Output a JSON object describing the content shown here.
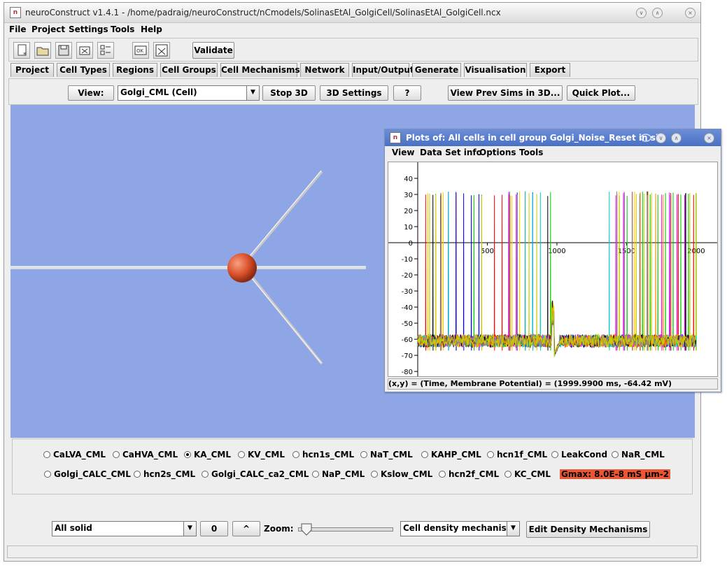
{
  "window": {
    "title": "neuroConstruct v1.4.1 - /home/padraig/neuroConstruct/nCmodels/SolinasEtAl_GolgiCell/SolinasEtAl_GolgiCell.ncx"
  },
  "menu": [
    "File",
    "Project",
    "Settings",
    "Tools",
    "Help"
  ],
  "toolbar": {
    "validate_label": "Validate"
  },
  "tabs": [
    "Project",
    "Cell Types",
    "Regions",
    "Cell Groups",
    "Cell Mechanisms",
    "Network",
    "Input/Output",
    "Generate",
    "Visualisation",
    "Export"
  ],
  "active_tab": "Visualisation",
  "viewbar": {
    "view_label": "View:",
    "view_value": "Golgi_CML (Cell)",
    "stop3d": "Stop 3D",
    "settings3d": "3D Settings",
    "help": "?",
    "view_prev": "View Prev Sims in 3D...",
    "quick_plot": "Quick Plot..."
  },
  "mechanisms": {
    "row1": [
      "CaLVA_CML",
      "CaHVA_CML",
      "KA_CML",
      "KV_CML",
      "hcn1s_CML",
      "NaT_CML",
      "KAHP_CML",
      "hcn1f_CML",
      "LeakCond",
      "NaR_CML"
    ],
    "row2": [
      "Golgi_CALC_CML",
      "hcn2s_CML",
      "Golgi_CALC_ca2_CML",
      "NaP_CML",
      "Kslow_CML",
      "hcn2f_CML",
      "KC_CML"
    ],
    "selected": "KA_CML",
    "gmax": "Gmax: 8.0E-8 mS µm-2",
    "gmax_color": "#ee5533"
  },
  "bottom": {
    "display_mode": "All solid",
    "zero": "0",
    "caret": "^",
    "zoom_label": "Zoom:",
    "color_mode": "Cell density mechanisms",
    "edit_button": "Edit Density Mechanisms"
  },
  "plot_window": {
    "title": "Plots of: All cells in cell group Golgi_Noise_Reset in sim: S",
    "menu": [
      "View",
      "Data Set info",
      "Options",
      "Tools"
    ],
    "status": "(x,y) = (Time, Membrane Potential) = (1999.9900 ms, -64.42 mV)"
  },
  "chart_data": {
    "type": "line",
    "xlabel": "",
    "ylabel": "",
    "xlim": [
      -5,
      2130
    ],
    "ylim": [
      -83,
      50
    ],
    "x_ticks": [
      500,
      1000,
      1500,
      2000
    ],
    "y_ticks": [
      40,
      30,
      20,
      10,
      0,
      -10,
      -20,
      -30,
      -40,
      -50,
      -60,
      -70,
      -80
    ],
    "series_colors": [
      "#ff0000",
      "#00cc00",
      "#0000ff",
      "#ffcc00",
      "#ff00ff",
      "#00cccc",
      "#000000",
      "#ff8800",
      "#888888",
      "#cccc00"
    ],
    "t_end": 2000,
    "gap_start": 960,
    "gap_end": 1370,
    "resting": -61,
    "spike_peak": 32
  }
}
